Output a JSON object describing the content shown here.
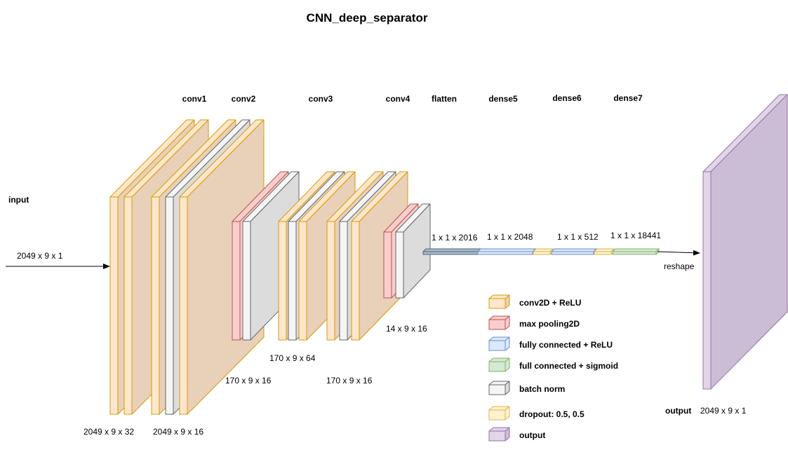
{
  "title": "CNN_deep_separator",
  "colors": {
    "conv_front": "#ffe6cc",
    "conv_stroke": "#d79b00",
    "conv_deep": "#e8d0b9",
    "pool_front": "#f8cecc",
    "pool_stroke": "#b85450",
    "bn_front": "#f5f5f5",
    "bn_stroke": "#666666",
    "bn_deep": "#dcdcdc",
    "fc_front": "#dae8fc",
    "fc_stroke": "#6c8ebf",
    "sig_front": "#d5e8d4",
    "sig_stroke": "#82b366",
    "drop_front": "#fff2cc",
    "drop_stroke": "#d6b656",
    "out_front": "#e1d5e7",
    "out_stroke": "#9673a6",
    "out_deep": "#cbbdd5",
    "flat_front": "#a9bccc",
    "flat_stroke": "#4a6278"
  },
  "layers": {
    "conv1": "conv1",
    "conv2": "conv2",
    "conv3": "conv3",
    "conv4": "conv4",
    "flatten": "flatten",
    "dense5": "dense5",
    "dense6": "dense6",
    "dense7": "dense7"
  },
  "input": {
    "label": "input",
    "shape": "2049 x 9 x 1"
  },
  "shapes": {
    "conv1": "2049 x 9 x 32",
    "conv2": "2049 x 9 x 16",
    "pool1": "170 x 9 x 16",
    "conv3a": "170 x 9 x 64",
    "conv3b": "170 x 9 x 16",
    "pool2": "14 x 9 x 16",
    "flatten": "1 x 1 x 2016",
    "dense5": "1 x 1 x 2048",
    "dense6": "1 x 1 x 512",
    "dense7": "1 x 1 x 18441"
  },
  "reshape": "reshape",
  "output": {
    "label": "output",
    "shape": "2049 x 9 x 1"
  },
  "legend": [
    {
      "label": "conv2D + ReLU",
      "color": "conv"
    },
    {
      "label": "max pooling2D",
      "color": "pool"
    },
    {
      "label": "fully connected + ReLU",
      "color": "fc"
    },
    {
      "label": "full connected + sigmoid",
      "color": "sig"
    },
    {
      "label": "batch norm",
      "color": "bn"
    },
    {
      "label": "dropout: 0.5, 0.5",
      "color": "drop"
    },
    {
      "label": "output",
      "color": "out"
    }
  ]
}
